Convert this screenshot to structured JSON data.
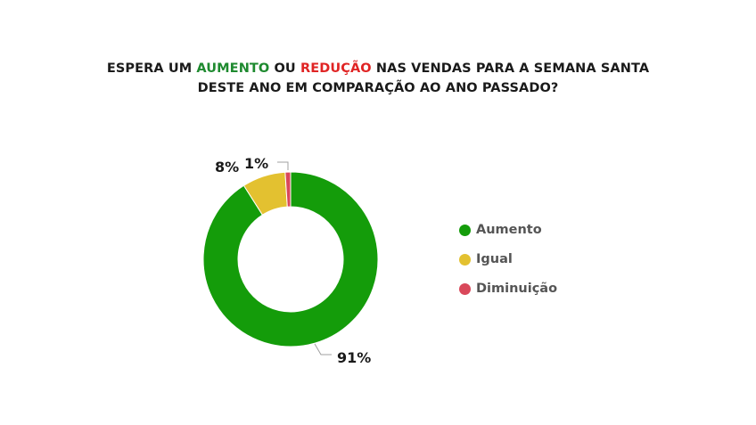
{
  "title": {
    "line1_part1": "ESPERA UM ",
    "line1_aumento": "AUMENTO",
    "line1_part2": " OU ",
    "line1_reducao": "REDUÇÃO",
    "line1_part3": " NAS VENDAS PARA A SEMANA SANTA",
    "line2": "DESTE ANO EM COMPARAÇÃO AO ANO PASSADO?"
  },
  "chart_data": {
    "type": "pie",
    "title": "ESPERA UM AUMENTO OU REDUÇÃO NAS VENDAS PARA A SEMANA SANTA DESTE ANO EM COMPARAÇÃO AO ANO PASSADO?",
    "categories": [
      "Aumento",
      "Igual",
      "Diminuição"
    ],
    "values": [
      91,
      8,
      1
    ],
    "data_labels": [
      "91%",
      "8%",
      "1%"
    ],
    "colors": [
      "#149c0a",
      "#e3c130",
      "#d9485a"
    ],
    "donut": true,
    "legend": "right"
  }
}
